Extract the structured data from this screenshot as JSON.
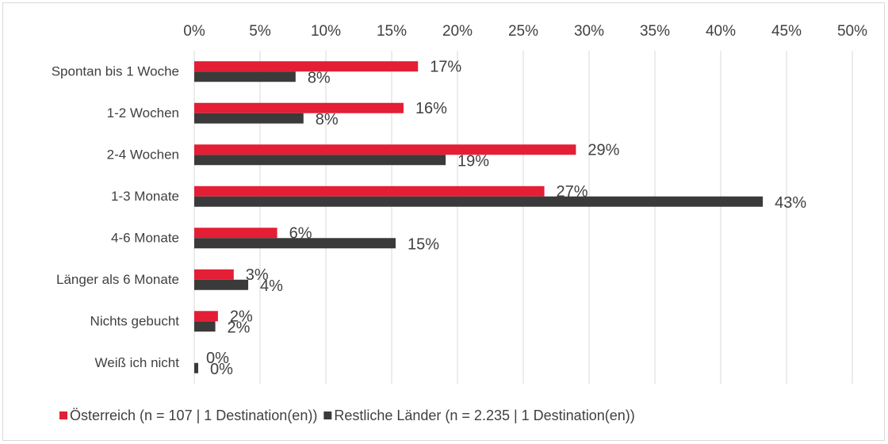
{
  "chart_data": {
    "type": "barh",
    "categories": [
      "Spontan bis 1 Woche",
      "1-2 Wochen",
      "2-4 Wochen",
      "1-3 Monate",
      "4-6 Monate",
      "Länger als 6 Monate",
      "Nichts gebucht",
      "Weiß ich nicht"
    ],
    "series": [
      {
        "name": "Österreich (n = 107 | 1 Destination(en))",
        "color": "#e31e35",
        "values": [
          17.0,
          15.9,
          29.0,
          26.6,
          6.3,
          3.0,
          1.8,
          0
        ],
        "value_labels": [
          "17%",
          "16%",
          "29%",
          "27%",
          "6%",
          "3%",
          "2%",
          "0%"
        ]
      },
      {
        "name": "Restliche Länder (n = 2.235 | 1 Destination(en))",
        "color": "#3a3a3a",
        "values": [
          7.7,
          8.3,
          19.1,
          43.2,
          15.3,
          4.1,
          1.6,
          0.3
        ],
        "value_labels": [
          "8%",
          "8%",
          "19%",
          "43%",
          "15%",
          "4%",
          "2%",
          "0%"
        ]
      }
    ],
    "xlim": [
      0,
      50
    ],
    "xticks": [
      {
        "value": 0,
        "label": "0%"
      },
      {
        "value": 5,
        "label": "5%"
      },
      {
        "value": 10,
        "label": "10%"
      },
      {
        "value": 15,
        "label": "15%"
      },
      {
        "value": 20,
        "label": "20%"
      },
      {
        "value": 25,
        "label": "25%"
      },
      {
        "value": 30,
        "label": "30%"
      },
      {
        "value": 35,
        "label": "35%"
      },
      {
        "value": 40,
        "label": "40%"
      },
      {
        "value": 45,
        "label": "45%"
      },
      {
        "value": 50,
        "label": "50%"
      }
    ],
    "grid": true,
    "legend": "bottom"
  }
}
